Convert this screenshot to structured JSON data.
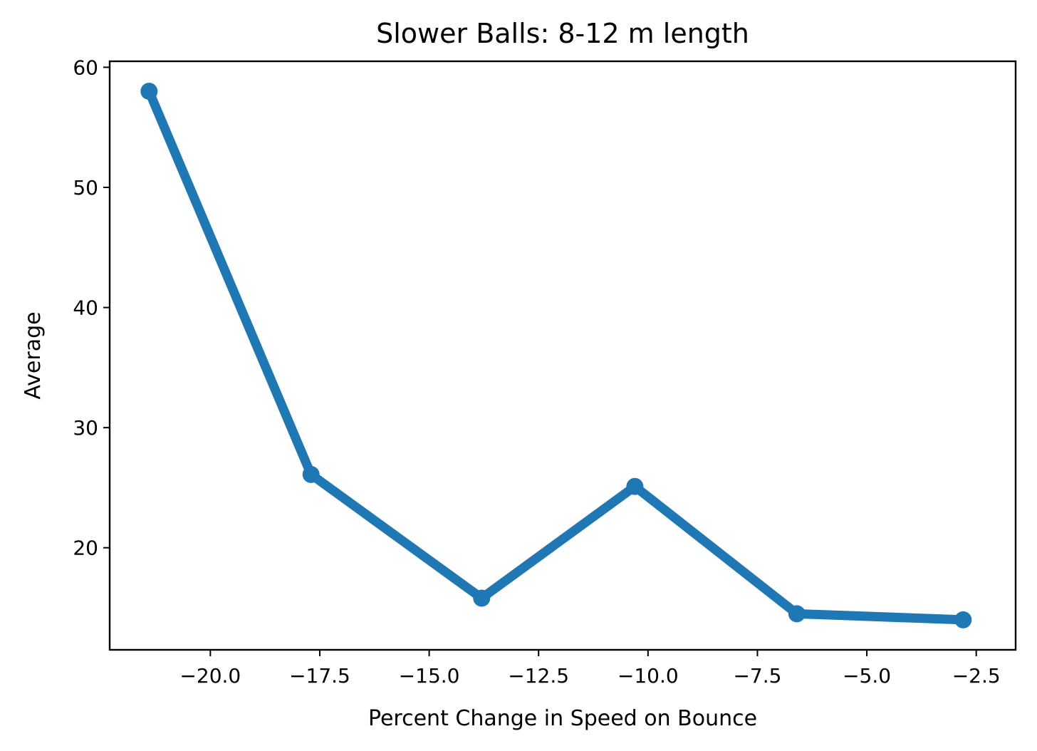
{
  "chart_data": {
    "type": "line",
    "title": "Slower Balls: 8-12 m length",
    "xlabel": "Percent Change in Speed on Bounce",
    "ylabel": "Average",
    "xlim": [
      -22.3,
      -1.6
    ],
    "ylim": [
      11.5,
      60.5
    ],
    "xticks": [
      -20.0,
      -17.5,
      -15.0,
      -12.5,
      -10.0,
      -7.5,
      -5.0,
      -2.5
    ],
    "xtick_labels": [
      "−20.0",
      "−17.5",
      "−15.0",
      "−12.5",
      "−10.0",
      "−7.5",
      "−5.0",
      "−2.5"
    ],
    "yticks": [
      20,
      30,
      40,
      50,
      60
    ],
    "ytick_labels": [
      "20",
      "30",
      "40",
      "50",
      "60"
    ],
    "grid": false,
    "series": [
      {
        "color": "#1f77b4",
        "x": [
          -21.4,
          -17.7,
          -13.8,
          -10.3,
          -6.6,
          -2.8
        ],
        "y": [
          58.0,
          26.1,
          15.8,
          25.1,
          14.5,
          14.0
        ]
      }
    ]
  }
}
